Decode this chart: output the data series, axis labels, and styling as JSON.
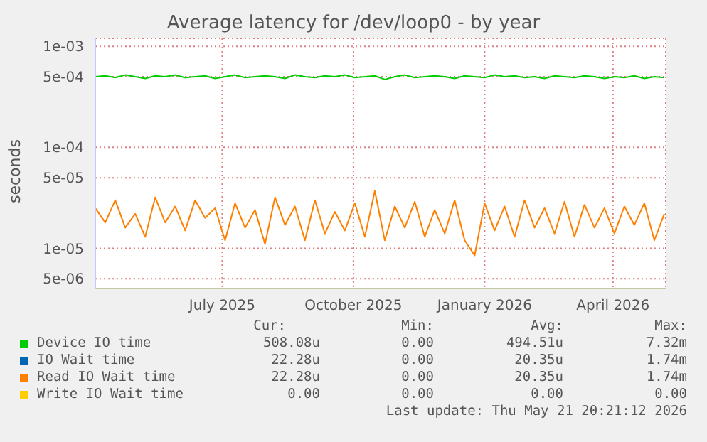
{
  "chart_data": {
    "type": "line",
    "title": "Average latency for /dev/loop0 - by year",
    "ylabel": "seconds",
    "log": true,
    "grid": true,
    "legend": "bottom",
    "ylim": [
      4e-06,
      0.0012
    ],
    "yticks": [
      {
        "value": 0.001,
        "label": "1e-03"
      },
      {
        "value": 0.0005,
        "label": "5e-04"
      },
      {
        "value": 0.0001,
        "label": "1e-04"
      },
      {
        "value": 5e-05,
        "label": "5e-05"
      },
      {
        "value": 1e-05,
        "label": "1e-05"
      },
      {
        "value": 5e-06,
        "label": "5e-06"
      }
    ],
    "xlim": [
      "2025-04-03",
      "2026-05-08"
    ],
    "xticks": [
      {
        "value": "2025-07-01",
        "label": "July 2025"
      },
      {
        "value": "2025-10-01",
        "label": "October 2025"
      },
      {
        "value": "2026-01-01",
        "label": "January 2026"
      },
      {
        "value": "2026-04-01",
        "label": "April 2026"
      }
    ],
    "x": [
      "2025-04-03",
      "2025-04-10",
      "2025-04-17",
      "2025-04-24",
      "2025-05-01",
      "2025-05-08",
      "2025-05-15",
      "2025-05-22",
      "2025-05-29",
      "2025-06-05",
      "2025-06-12",
      "2025-06-19",
      "2025-06-26",
      "2025-07-03",
      "2025-07-10",
      "2025-07-17",
      "2025-07-24",
      "2025-07-31",
      "2025-08-07",
      "2025-08-14",
      "2025-08-21",
      "2025-08-28",
      "2025-09-04",
      "2025-09-11",
      "2025-09-18",
      "2025-09-25",
      "2025-10-02",
      "2025-10-09",
      "2025-10-16",
      "2025-10-23",
      "2025-10-30",
      "2025-11-06",
      "2025-11-13",
      "2025-11-20",
      "2025-11-27",
      "2025-12-04",
      "2025-12-11",
      "2025-12-18",
      "2025-12-25",
      "2026-01-01",
      "2026-01-08",
      "2026-01-15",
      "2026-01-22",
      "2026-01-29",
      "2026-02-05",
      "2026-02-12",
      "2026-02-19",
      "2026-02-26",
      "2026-03-05",
      "2026-03-12",
      "2026-03-19",
      "2026-03-26",
      "2026-04-02",
      "2026-04-09",
      "2026-04-16",
      "2026-04-23",
      "2026-04-30",
      "2026-05-07"
    ],
    "series": [
      {
        "name": "Device IO time",
        "color": "#00cc00",
        "values": [
          0.0005,
          0.00051,
          0.00049,
          0.00052,
          0.0005,
          0.00048,
          0.00051,
          0.0005,
          0.00052,
          0.00049,
          0.0005,
          0.00051,
          0.00048,
          0.0005,
          0.00052,
          0.00049,
          0.0005,
          0.00051,
          0.0005,
          0.00048,
          0.00052,
          0.0005,
          0.00049,
          0.00051,
          0.0005,
          0.00052,
          0.00049,
          0.0005,
          0.00051,
          0.00047,
          0.0005,
          0.00052,
          0.00049,
          0.0005,
          0.00051,
          0.0005,
          0.00048,
          0.00051,
          0.0005,
          0.00049,
          0.00052,
          0.0005,
          0.00051,
          0.00049,
          0.0005,
          0.00048,
          0.00051,
          0.0005,
          0.00049,
          0.00051,
          0.0005,
          0.00048,
          0.0005,
          0.00049,
          0.00051,
          0.00048,
          0.0005,
          0.00049
        ]
      },
      {
        "name": "IO Wait time",
        "color": "#0066b3",
        "values": [
          null,
          null,
          null,
          null,
          null,
          null,
          null,
          null,
          null,
          null,
          null,
          null,
          null,
          null,
          null,
          null,
          null,
          null,
          null,
          null,
          null,
          null,
          null,
          null,
          null,
          null,
          null,
          null,
          null,
          null,
          null,
          null,
          null,
          null,
          null,
          null,
          null,
          null,
          null,
          null,
          null,
          null,
          null,
          null,
          null,
          null,
          null,
          null,
          null,
          null,
          null,
          null,
          null,
          null,
          null,
          null,
          null,
          null
        ]
      },
      {
        "name": "Read IO Wait time",
        "color": "#ff8000",
        "values": [
          2.5e-05,
          1.8e-05,
          3e-05,
          1.6e-05,
          2.2e-05,
          1.3e-05,
          3.2e-05,
          1.8e-05,
          2.6e-05,
          1.5e-05,
          3e-05,
          2e-05,
          2.5e-05,
          1.2e-05,
          2.8e-05,
          1.6e-05,
          2.4e-05,
          1.1e-05,
          3.2e-05,
          1.7e-05,
          2.6e-05,
          1.2e-05,
          3e-05,
          1.4e-05,
          2.3e-05,
          1.5e-05,
          2.8e-05,
          1.3e-05,
          3.7e-05,
          1.2e-05,
          2.6e-05,
          1.6e-05,
          2.9e-05,
          1.3e-05,
          2.4e-05,
          1.4e-05,
          3e-05,
          1.2e-05,
          8.5e-06,
          2.8e-05,
          1.5e-05,
          2.6e-05,
          1.3e-05,
          3e-05,
          1.6e-05,
          2.5e-05,
          1.4e-05,
          2.9e-05,
          1.3e-05,
          2.7e-05,
          1.6e-05,
          2.5e-05,
          1.4e-05,
          2.6e-05,
          1.7e-05,
          2.8e-05,
          1.2e-05,
          2.2e-05
        ]
      },
      {
        "name": "Write IO Wait time",
        "color": "#ffcc00",
        "values": [
          null,
          null,
          null,
          null,
          null,
          null,
          null,
          null,
          null,
          null,
          null,
          null,
          null,
          null,
          null,
          null,
          null,
          null,
          null,
          null,
          null,
          null,
          null,
          null,
          null,
          null,
          null,
          null,
          null,
          null,
          null,
          null,
          null,
          null,
          null,
          null,
          null,
          null,
          null,
          null,
          null,
          null,
          null,
          null,
          null,
          null,
          null,
          null,
          null,
          null,
          null,
          null,
          null,
          null,
          null,
          null,
          null,
          null
        ]
      }
    ],
    "annotations": [
      "Cur:",
      "Min:",
      "Avg:",
      "Max:",
      "508.08u",
      "0.00",
      "494.51u",
      "7.32m",
      "22.28u",
      "0.00",
      "20.35u",
      "1.74m",
      "22.28u",
      "0.00",
      "20.35u",
      "1.74m",
      "0.00",
      "0.00",
      "0.00",
      "0.00",
      "Last update: Thu May 21 20:21:12 2026"
    ]
  }
}
